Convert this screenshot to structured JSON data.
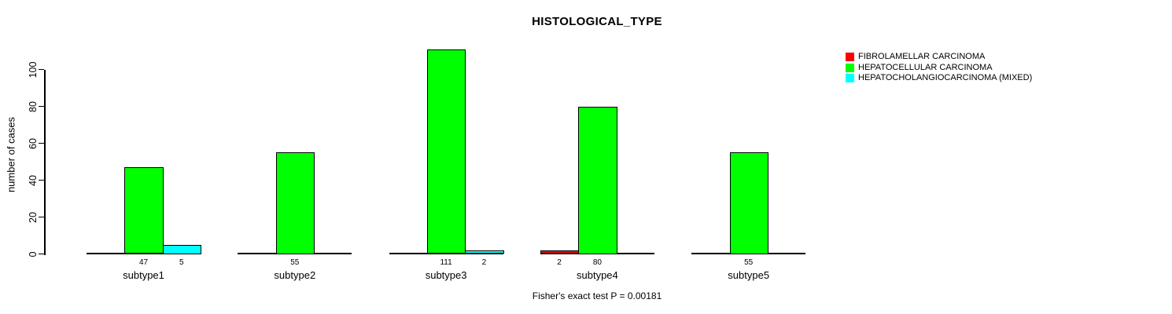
{
  "title": "HISTOLOGICAL_TYPE",
  "caption": "Fisher's exact test P = 0.00181",
  "y_axis": {
    "label": "number of cases",
    "ticks": [
      0,
      20,
      40,
      60,
      80,
      100
    ]
  },
  "legend": {
    "items": [
      {
        "label": "FIBROLAMELLAR CARCINOMA",
        "color": "#FF0000"
      },
      {
        "label": "HEPATOCELLULAR CARCINOMA",
        "color": "#00FF00"
      },
      {
        "label": "HEPATOCHOLANGIOCARCINOMA (MIXED)",
        "color": "#00FFFF"
      }
    ]
  },
  "chart_data": {
    "type": "bar",
    "title": "HISTOLOGICAL_TYPE",
    "xlabel": "",
    "ylabel": "number of cases",
    "categories": [
      "subtype1",
      "subtype2",
      "subtype3",
      "subtype4",
      "subtype5"
    ],
    "series": [
      {
        "name": "FIBROLAMELLAR CARCINOMA",
        "color": "#FF0000",
        "values": [
          0,
          0,
          0,
          2,
          0
        ]
      },
      {
        "name": "HEPATOCELLULAR CARCINOMA",
        "color": "#00FF00",
        "values": [
          47,
          55,
          111,
          80,
          55
        ]
      },
      {
        "name": "HEPATOCHOLANGIOCARCINOMA (MIXED)",
        "color": "#00FFFF",
        "values": [
          5,
          0,
          2,
          0,
          0
        ]
      }
    ],
    "bar_value_labels_shown": true,
    "yticks": [
      0,
      20,
      40,
      60,
      80,
      100
    ],
    "ylim": [
      0,
      111
    ],
    "grid": false,
    "legend_position": "top-right",
    "annotation": "Fisher's exact test P = 0.00181"
  }
}
